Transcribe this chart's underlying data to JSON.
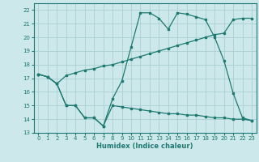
{
  "xlabel": "Humidex (Indice chaleur)",
  "bg_color": "#cce8eb",
  "grid_color": "#aacfd4",
  "line_color": "#1e7a70",
  "ylim": [
    13,
    22.5
  ],
  "xlim": [
    -0.5,
    23.5
  ],
  "yticks": [
    13,
    14,
    15,
    16,
    17,
    18,
    19,
    20,
    21,
    22
  ],
  "xticks": [
    0,
    1,
    2,
    3,
    4,
    5,
    6,
    7,
    8,
    9,
    10,
    11,
    12,
    13,
    14,
    15,
    16,
    17,
    18,
    19,
    20,
    21,
    22,
    23
  ],
  "line1_x": [
    0,
    1,
    2,
    3,
    4,
    5,
    6,
    7,
    8,
    9,
    10,
    11,
    12,
    13,
    14,
    15,
    16,
    17,
    18,
    19,
    20,
    21,
    22,
    23
  ],
  "line1_y": [
    17.3,
    17.1,
    16.6,
    15.0,
    15.0,
    14.1,
    14.1,
    13.5,
    15.5,
    16.8,
    19.3,
    21.8,
    21.8,
    21.4,
    20.6,
    21.8,
    21.7,
    21.5,
    21.3,
    20.0,
    18.3,
    15.9,
    14.1,
    13.9
  ],
  "line2_x": [
    0,
    1,
    2,
    3,
    4,
    5,
    6,
    7,
    8,
    9,
    10,
    11,
    12,
    13,
    14,
    15,
    16,
    17,
    18,
    19,
    20,
    21,
    22,
    23
  ],
  "line2_y": [
    17.3,
    17.1,
    16.6,
    17.2,
    17.4,
    17.6,
    17.7,
    17.9,
    18.0,
    18.2,
    18.4,
    18.6,
    18.8,
    19.0,
    19.2,
    19.4,
    19.6,
    19.8,
    20.0,
    20.2,
    20.3,
    21.3,
    21.4,
    21.4
  ],
  "line3_x": [
    0,
    1,
    2,
    3,
    4,
    5,
    6,
    7,
    8,
    9,
    10,
    11,
    12,
    13,
    14,
    15,
    16,
    17,
    18,
    19,
    20,
    21,
    22,
    23
  ],
  "line3_y": [
    17.3,
    17.1,
    16.6,
    15.0,
    15.0,
    14.1,
    14.1,
    13.5,
    15.0,
    14.9,
    14.8,
    14.7,
    14.6,
    14.5,
    14.4,
    14.4,
    14.3,
    14.3,
    14.2,
    14.1,
    14.1,
    14.0,
    14.0,
    13.9
  ]
}
